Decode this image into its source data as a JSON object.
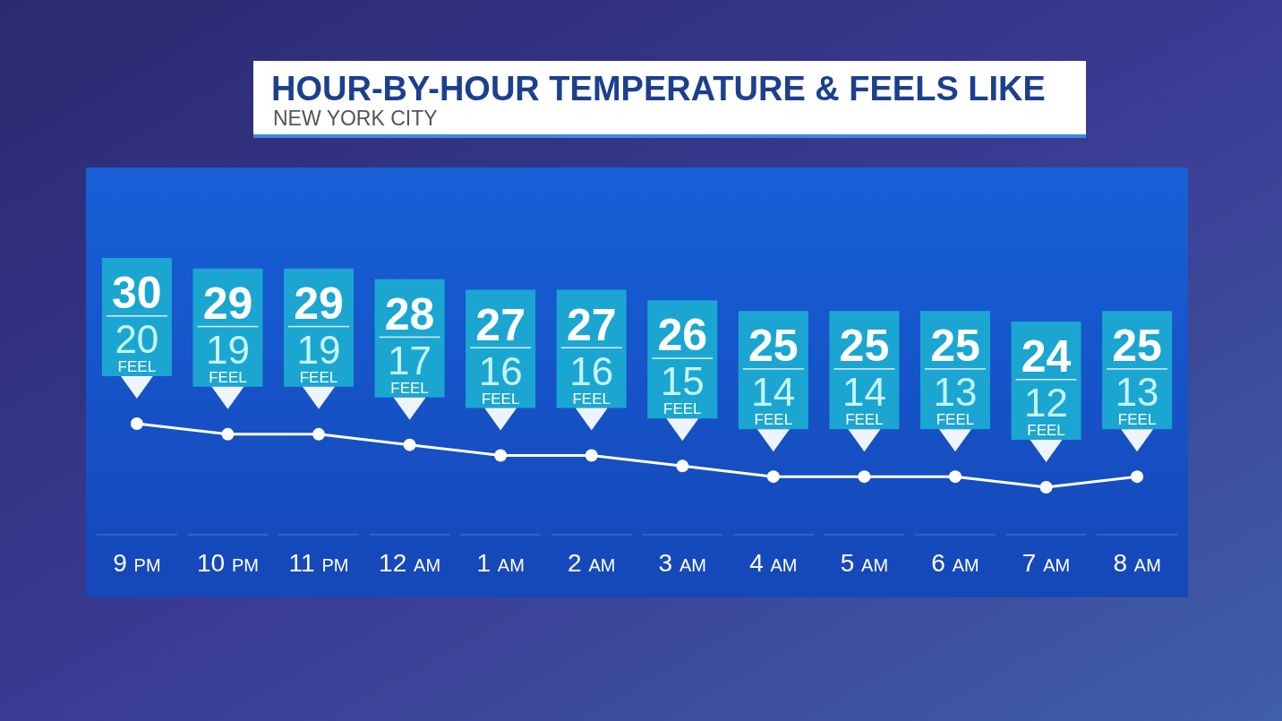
{
  "chart_data": {
    "type": "line",
    "title": "HOUR-BY-HOUR TEMPERATURE & FEELS LIKE",
    "subtitle": "NEW YORK CITY",
    "categories": [
      "9 PM",
      "10 PM",
      "11 PM",
      "12 AM",
      "1 AM",
      "2 AM",
      "3 AM",
      "4 AM",
      "5 AM",
      "6 AM",
      "7 AM",
      "8 AM"
    ],
    "series": [
      {
        "color": "#ffffff",
        "values": [
          30,
          29,
          29,
          28,
          27,
          27,
          26,
          25,
          25,
          25,
          24,
          25
        ]
      }
    ],
    "annotations": [
      "20",
      "19",
      "19",
      "17",
      "16",
      "16",
      "15",
      "14",
      "14",
      "13",
      "12",
      "13",
      "FEEL"
    ],
    "tick_labels": "x",
    "data_labels": true,
    "marker": "circle"
  }
}
